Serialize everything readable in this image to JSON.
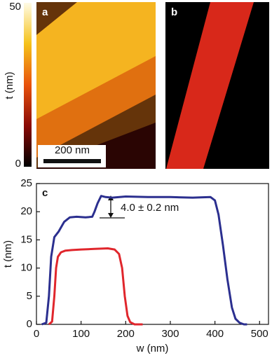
{
  "colorbar": {
    "label": "t (nm)",
    "lim": [
      0,
      50
    ],
    "ticks": [
      0,
      50
    ]
  },
  "images": [
    {
      "label": "a",
      "scale_bar": "200 nm"
    },
    {
      "label": "b"
    }
  ],
  "chart_data": {
    "type": "line",
    "panel_label": "c",
    "xlabel": "w (nm)",
    "ylabel": "t (nm)",
    "annotation": "4.0 ± 0.2 nm",
    "xlim": [
      0,
      520
    ],
    "xticks": [
      0,
      100,
      200,
      300,
      400,
      500
    ],
    "ylim": [
      0,
      25
    ],
    "yticks": [
      0,
      5,
      10,
      15,
      20,
      25
    ],
    "series": [
      {
        "color": "#2b2f8f",
        "x": [
          12,
          22,
          28,
          33,
          40,
          50,
          62,
          75,
          90,
          110,
          125,
          130,
          137,
          145,
          155,
          170,
          200,
          250,
          300,
          350,
          390,
          400,
          408,
          418,
          428,
          438,
          446,
          455,
          465,
          472
        ],
        "values": [
          0,
          0.3,
          5,
          12,
          15.5,
          16.5,
          18.2,
          19,
          19.1,
          19,
          19.1,
          20,
          21.5,
          22.8,
          22.6,
          22.5,
          22.7,
          22.6,
          22.6,
          22.5,
          22.6,
          22,
          19.5,
          14,
          8,
          3,
          1,
          0.3,
          0,
          0
        ]
      },
      {
        "color": "#e0262c",
        "x": [
          28,
          35,
          40,
          44,
          48,
          55,
          65,
          80,
          100,
          130,
          160,
          175,
          185,
          192,
          198,
          204,
          210,
          220,
          238
        ],
        "values": [
          0,
          0.5,
          5,
          10,
          12,
          12.8,
          13.1,
          13.2,
          13.3,
          13.4,
          13.5,
          13.3,
          12.5,
          10,
          5,
          1.5,
          0.4,
          0,
          0
        ]
      }
    ]
  }
}
